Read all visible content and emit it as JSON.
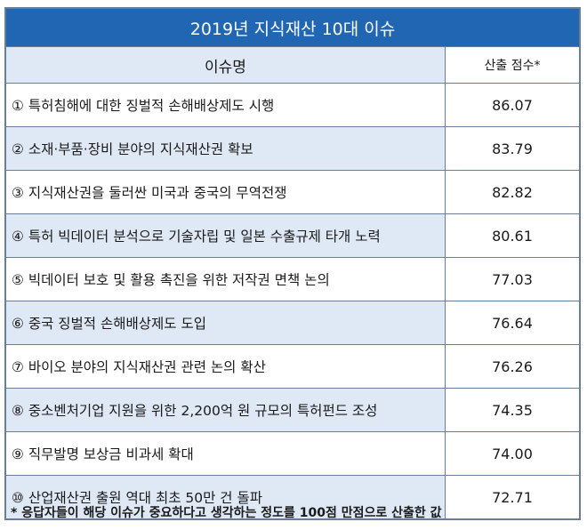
{
  "table": {
    "title": "2019년 지식재산 10대 이슈",
    "header": {
      "issue": "이슈명",
      "score": "산출 점수*"
    },
    "rows": [
      {
        "issue": "① 특허침해에 대한 징벌적 손해배상제도 시행",
        "score": "86.07"
      },
      {
        "issue": "② 소재·부품·장비 분야의 지식재산권 확보",
        "score": "83.79"
      },
      {
        "issue": "③ 지식재산권을 둘러싼 미국과 중국의 무역전쟁",
        "score": "82.82"
      },
      {
        "issue": "④ 특허 빅데이터 분석으로 기술자립 및 일본 수출규제 타개 노력",
        "score": "80.61"
      },
      {
        "issue": "⑤ 빅데이터 보호 및 활용 촉진을 위한 저작권 면책 논의",
        "score": "77.03"
      },
      {
        "issue": "⑥ 중국 징벌적 손해배상제도 도입",
        "score": "76.64"
      },
      {
        "issue": "⑦ 바이오 분야의 지식재산권 관련 논의 확산",
        "score": "76.26"
      },
      {
        "issue": "⑧ 중소벤처기업 지원을 위한 2,200억 원 규모의 특허펀드 조성",
        "score": "74.35"
      },
      {
        "issue": "⑨ 직무발명 보상금 비과세 확대",
        "score": "74.00"
      },
      {
        "issue": "⑩ 산업재산권 출원 역대 최초 50만 건 돌파",
        "score": "72.71"
      }
    ]
  },
  "footnote": "* 응답자들이 해당 이슈가 중요하다고 생각하는 정도를 100점 만점으로 산출한 값"
}
